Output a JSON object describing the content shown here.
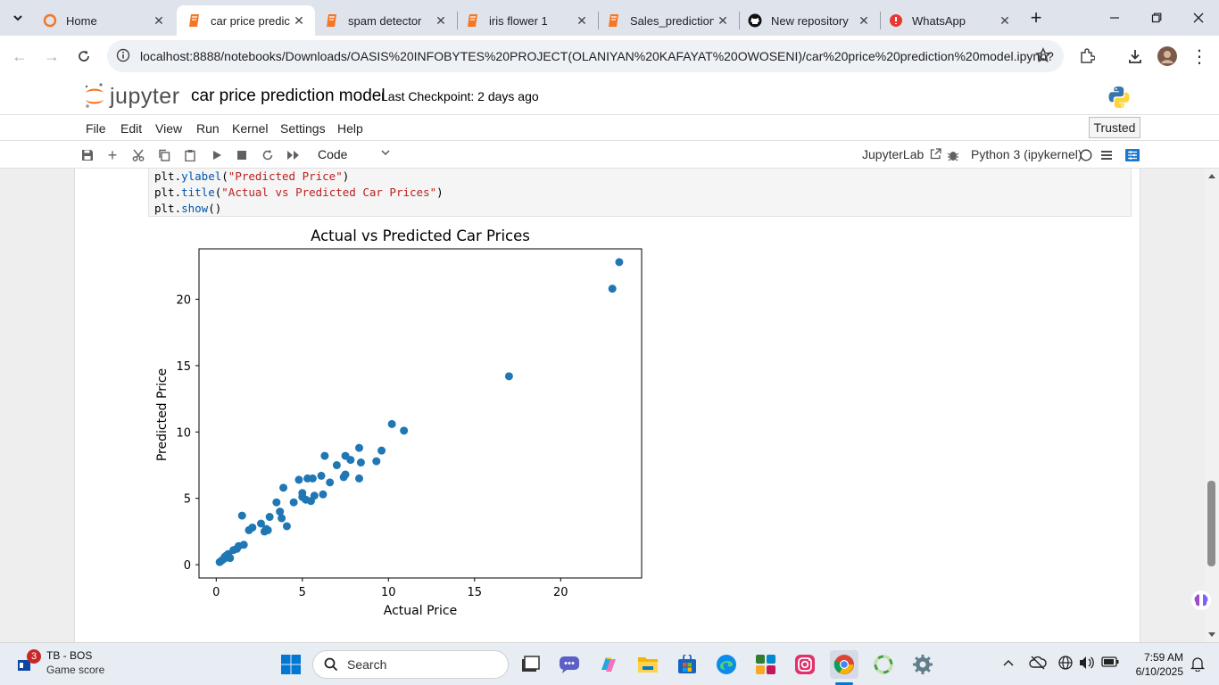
{
  "browser": {
    "tabs": [
      {
        "label": "Home",
        "icon": "jupyter-orange-ring-icon"
      },
      {
        "label": "car price predict",
        "icon": "notebook-icon",
        "active": true
      },
      {
        "label": "spam detector",
        "icon": "notebook-icon"
      },
      {
        "label": "iris flower 1",
        "icon": "notebook-icon"
      },
      {
        "label": "Sales_prediction",
        "icon": "notebook-icon"
      },
      {
        "label": "New repository",
        "icon": "github-icon"
      },
      {
        "label": "WhatsApp",
        "icon": "whatsapp-icon"
      }
    ],
    "url": "localhost:8888/notebooks/Downloads/OASIS%20INFOBYTES%20PROJECT(OLANIYAN%20KAFAYAT%20OWOSENI)/car%20price%20prediction%20model.ipynb?"
  },
  "jupyter": {
    "logo_text": "jupyter",
    "notebook_title": "car price prediction model",
    "checkpoint": "Last Checkpoint: 2 days ago",
    "menu": [
      "File",
      "Edit",
      "View",
      "Run",
      "Kernel",
      "Settings",
      "Help"
    ],
    "trusted": "Trusted",
    "cell_type": "Code",
    "jupyterlab_link": "JupyterLab",
    "kernel": "Python 3 (ipykernel)"
  },
  "code": {
    "line1_obj": "plt.",
    "line1_fn": "ylabel",
    "line1_open": "(",
    "line1_str": "\"Predicted Price\"",
    "line1_close": ")",
    "line2_obj": "plt.",
    "line2_fn": "title",
    "line2_open": "(",
    "line2_str": "\"Actual vs Predicted Car Prices\"",
    "line2_close": ")",
    "line3_obj": "plt.",
    "line3_fn": "show",
    "line3_rest": "()"
  },
  "chart_data": {
    "type": "scatter",
    "title": "Actual vs Predicted Car Prices",
    "xlabel": "Actual Price",
    "ylabel": "Predicted Price",
    "xlim": [
      -1,
      24.7
    ],
    "ylim": [
      -1,
      23.8
    ],
    "xticks": [
      0,
      5,
      10,
      15,
      20
    ],
    "yticks": [
      0,
      5,
      10,
      15,
      20
    ],
    "grid": false,
    "color": "#1f77b4",
    "points": [
      [
        0.2,
        0.2
      ],
      [
        0.3,
        0.3
      ],
      [
        0.4,
        0.4
      ],
      [
        0.5,
        0.5
      ],
      [
        0.6,
        0.7
      ],
      [
        0.7,
        0.8
      ],
      [
        0.5,
        0.6
      ],
      [
        0.8,
        0.5
      ],
      [
        1.0,
        1.1
      ],
      [
        1.2,
        1.2
      ],
      [
        1.3,
        1.4
      ],
      [
        1.6,
        1.5
      ],
      [
        1.5,
        3.7
      ],
      [
        1.9,
        2.6
      ],
      [
        2.1,
        2.8
      ],
      [
        2.6,
        3.1
      ],
      [
        2.8,
        2.5
      ],
      [
        2.9,
        2.7
      ],
      [
        3.0,
        2.6
      ],
      [
        3.1,
        3.6
      ],
      [
        3.5,
        4.7
      ],
      [
        3.7,
        4.0
      ],
      [
        3.8,
        3.5
      ],
      [
        3.9,
        5.8
      ],
      [
        4.1,
        2.9
      ],
      [
        4.5,
        4.7
      ],
      [
        4.8,
        6.4
      ],
      [
        5.0,
        5.1
      ],
      [
        5.0,
        5.4
      ],
      [
        5.2,
        4.9
      ],
      [
        5.3,
        6.5
      ],
      [
        5.5,
        4.8
      ],
      [
        5.6,
        6.5
      ],
      [
        5.7,
        5.2
      ],
      [
        6.1,
        6.7
      ],
      [
        6.2,
        5.3
      ],
      [
        6.3,
        8.2
      ],
      [
        6.6,
        6.2
      ],
      [
        7.0,
        7.5
      ],
      [
        7.4,
        6.6
      ],
      [
        7.5,
        6.8
      ],
      [
        7.5,
        8.2
      ],
      [
        7.8,
        7.9
      ],
      [
        8.3,
        6.5
      ],
      [
        8.3,
        8.8
      ],
      [
        8.4,
        7.7
      ],
      [
        9.3,
        7.8
      ],
      [
        9.6,
        8.6
      ],
      [
        10.2,
        10.6
      ],
      [
        10.9,
        10.1
      ],
      [
        17.0,
        14.2
      ],
      [
        23.0,
        20.8
      ],
      [
        23.4,
        22.8
      ]
    ]
  },
  "taskbar": {
    "widget_badge": "3",
    "widget_title": "TB - BOS",
    "widget_sub": "Game score",
    "search_label": "Search",
    "time": "7:59 AM",
    "date": "6/10/2025"
  }
}
